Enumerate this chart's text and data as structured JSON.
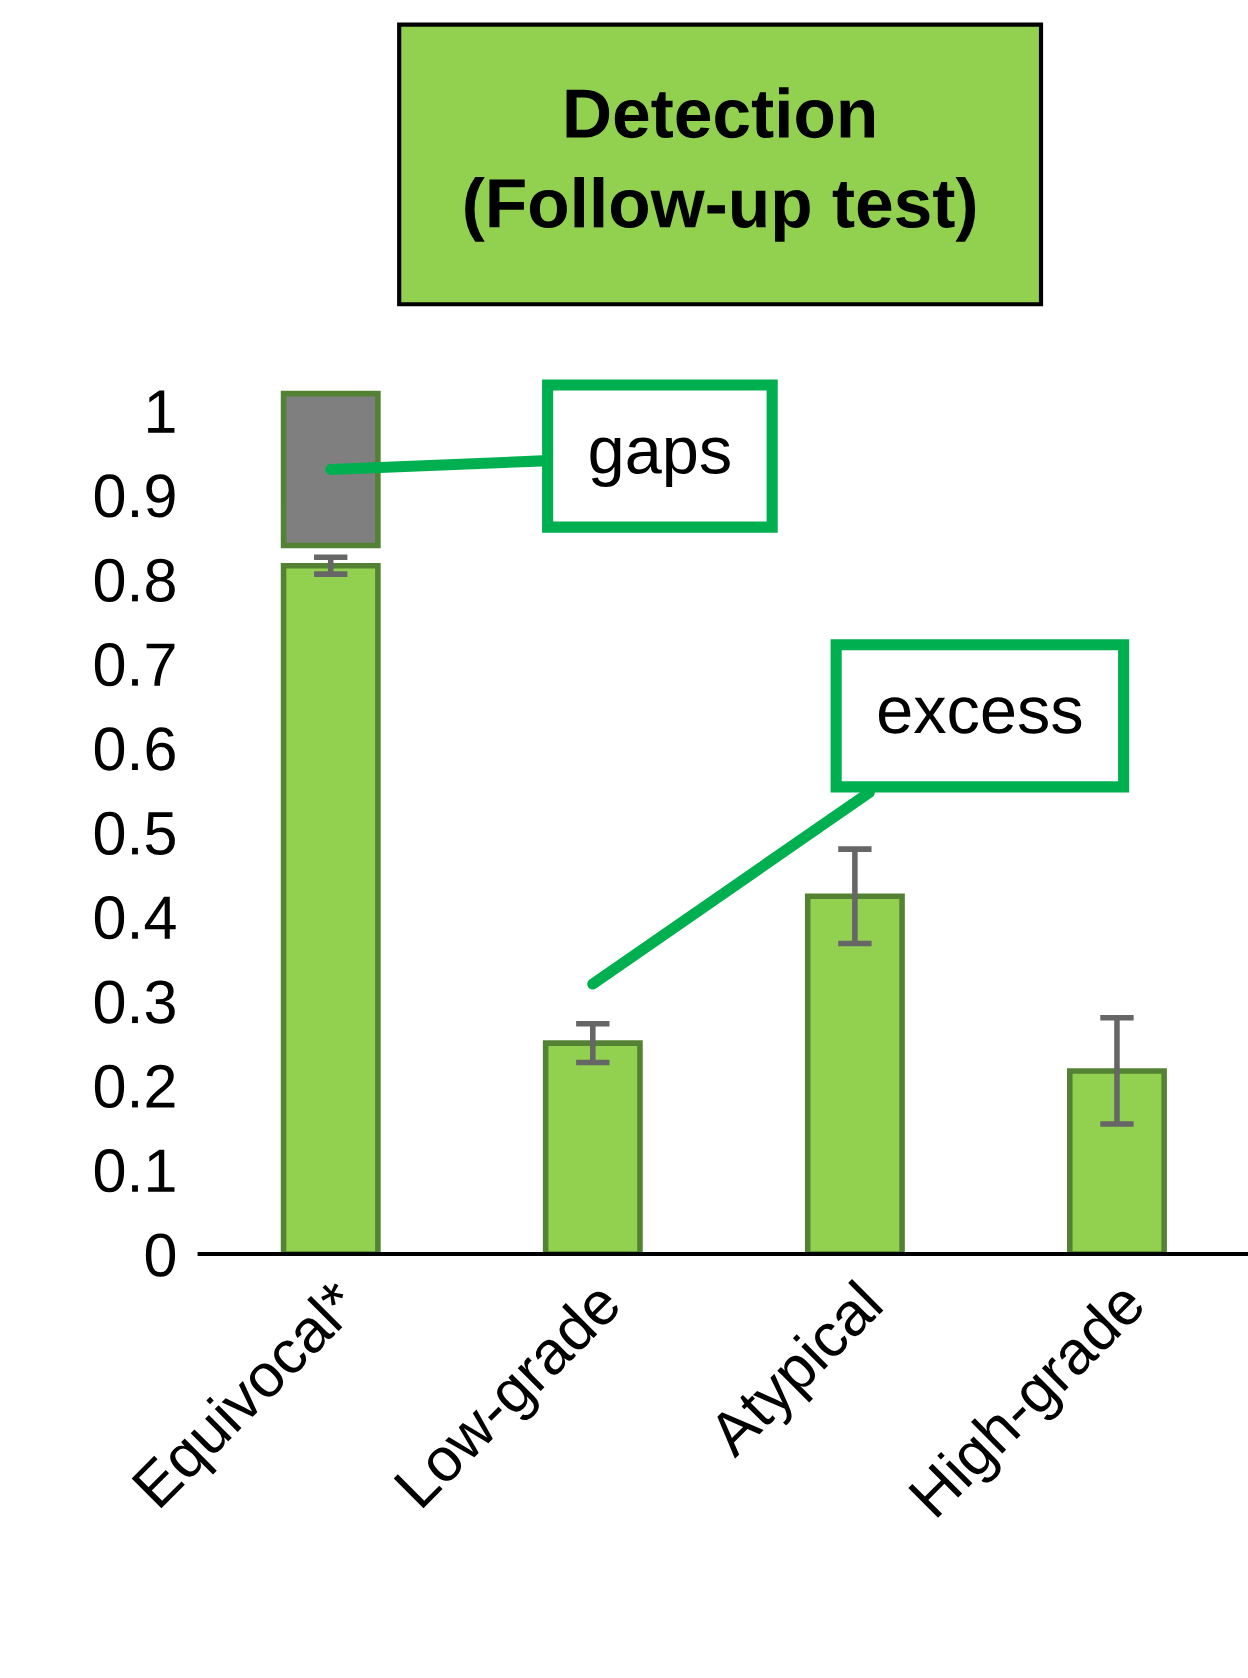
{
  "chart_data": {
    "type": "bar",
    "title": "Detection\n(Follow-up test)",
    "categories": [
      "Equivocal*",
      "Low-grade",
      "Atypical",
      "High-grade"
    ],
    "series": [
      {
        "color": "#92d050",
        "values": [
          0.816,
          null,
          null,
          null
        ],
        "errors": [
          0.01,
          null,
          null,
          null
        ]
      },
      {
        "color": "#92d050",
        "values": [
          null,
          0.25,
          0.424,
          0.217
        ],
        "errors": [
          null,
          0.023,
          0.056,
          0.063
        ]
      },
      {
        "color": "#7f7f7f",
        "values": [
          0.18,
          null,
          null,
          null
        ],
        "base": [
          0.84,
          null,
          null,
          null
        ]
      }
    ],
    "ylim": [
      0,
      1.05
    ],
    "yticks": [
      0,
      0.1,
      0.2,
      0.3,
      0.4,
      0.5,
      0.6,
      0.7,
      0.8,
      0.9,
      1
    ],
    "annotations": [
      "gaps",
      "excess"
    ],
    "grid": false,
    "legend": false
  }
}
